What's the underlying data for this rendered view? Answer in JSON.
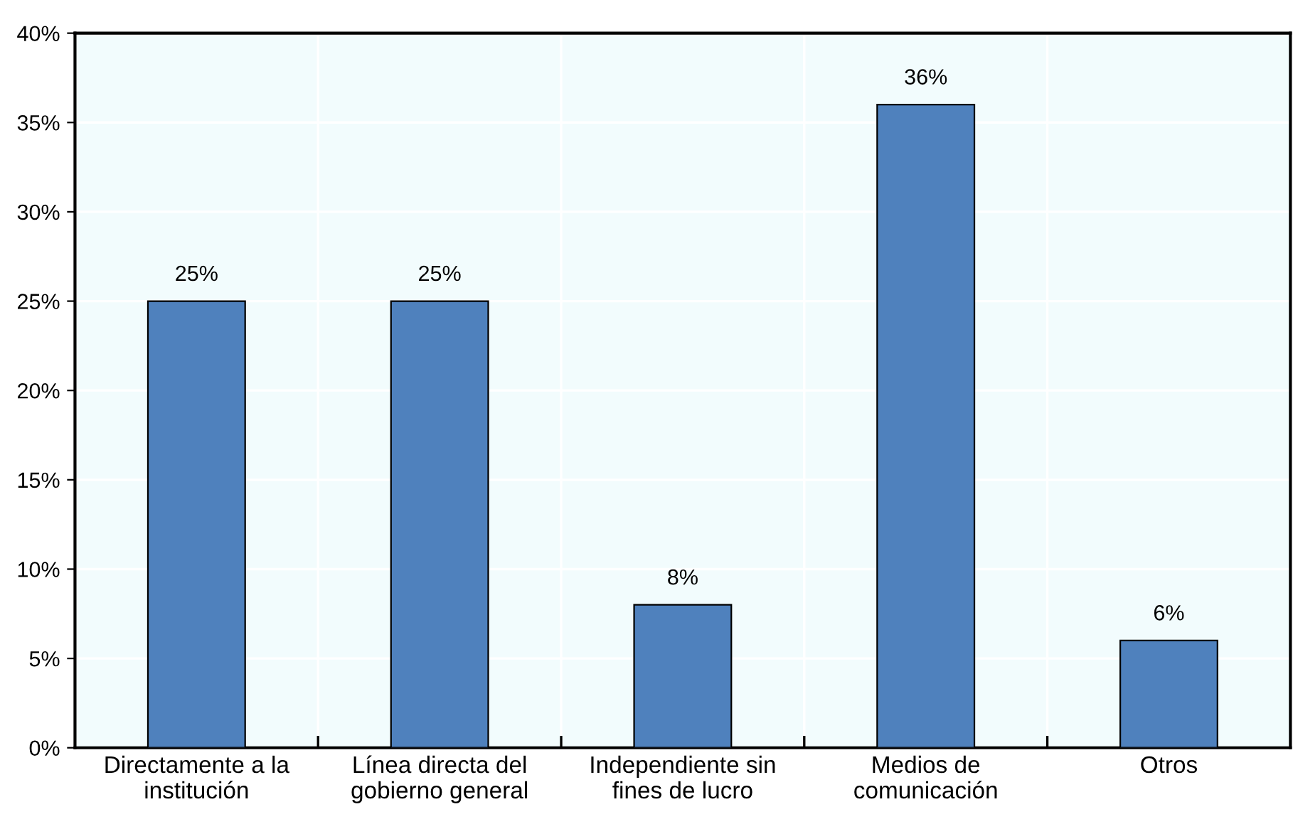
{
  "chart_data": {
    "type": "bar",
    "categories": [
      "Directamente a la\ninstitución",
      "Línea directa del\ngobierno general",
      "Independiente sin\nfines de lucro",
      "Medios de\ncomunicación",
      "Otros"
    ],
    "values": [
      25,
      25,
      8,
      36,
      6
    ],
    "value_labels": [
      "25%",
      "25%",
      "8%",
      "36%",
      "6%"
    ],
    "color": "#4f81bd",
    "ylim": [
      0,
      40
    ],
    "yticks": [
      {
        "value": 0,
        "label": "0%"
      },
      {
        "value": 5,
        "label": "5%"
      },
      {
        "value": 10,
        "label": "10%"
      },
      {
        "value": 15,
        "label": "15%"
      },
      {
        "value": 20,
        "label": "20%"
      },
      {
        "value": 25,
        "label": "25%"
      },
      {
        "value": 30,
        "label": "30%"
      },
      {
        "value": 35,
        "label": "35%"
      },
      {
        "value": 40,
        "label": "40%"
      }
    ],
    "grid": true
  }
}
